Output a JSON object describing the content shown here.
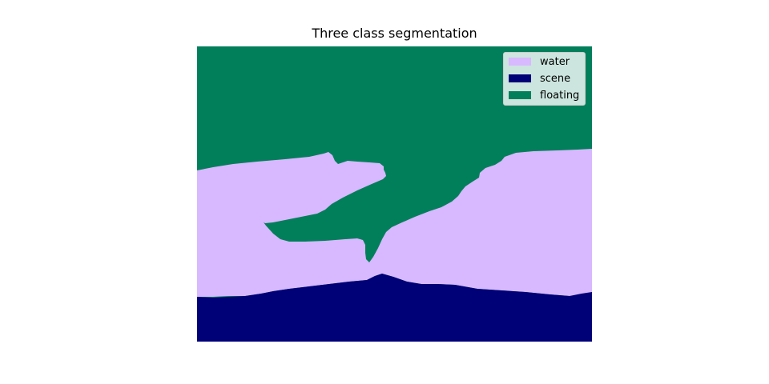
{
  "figure": {
    "title": "Three class segmentation"
  },
  "legend": {
    "items": [
      {
        "label": "water",
        "color": "#d8b8ff"
      },
      {
        "label": "scene",
        "color": "#000077"
      },
      {
        "label": "floating",
        "color": "#017f5a"
      }
    ]
  },
  "colors": {
    "water": "#d8b8ff",
    "scene": "#000077",
    "floating": "#017f5a"
  }
}
